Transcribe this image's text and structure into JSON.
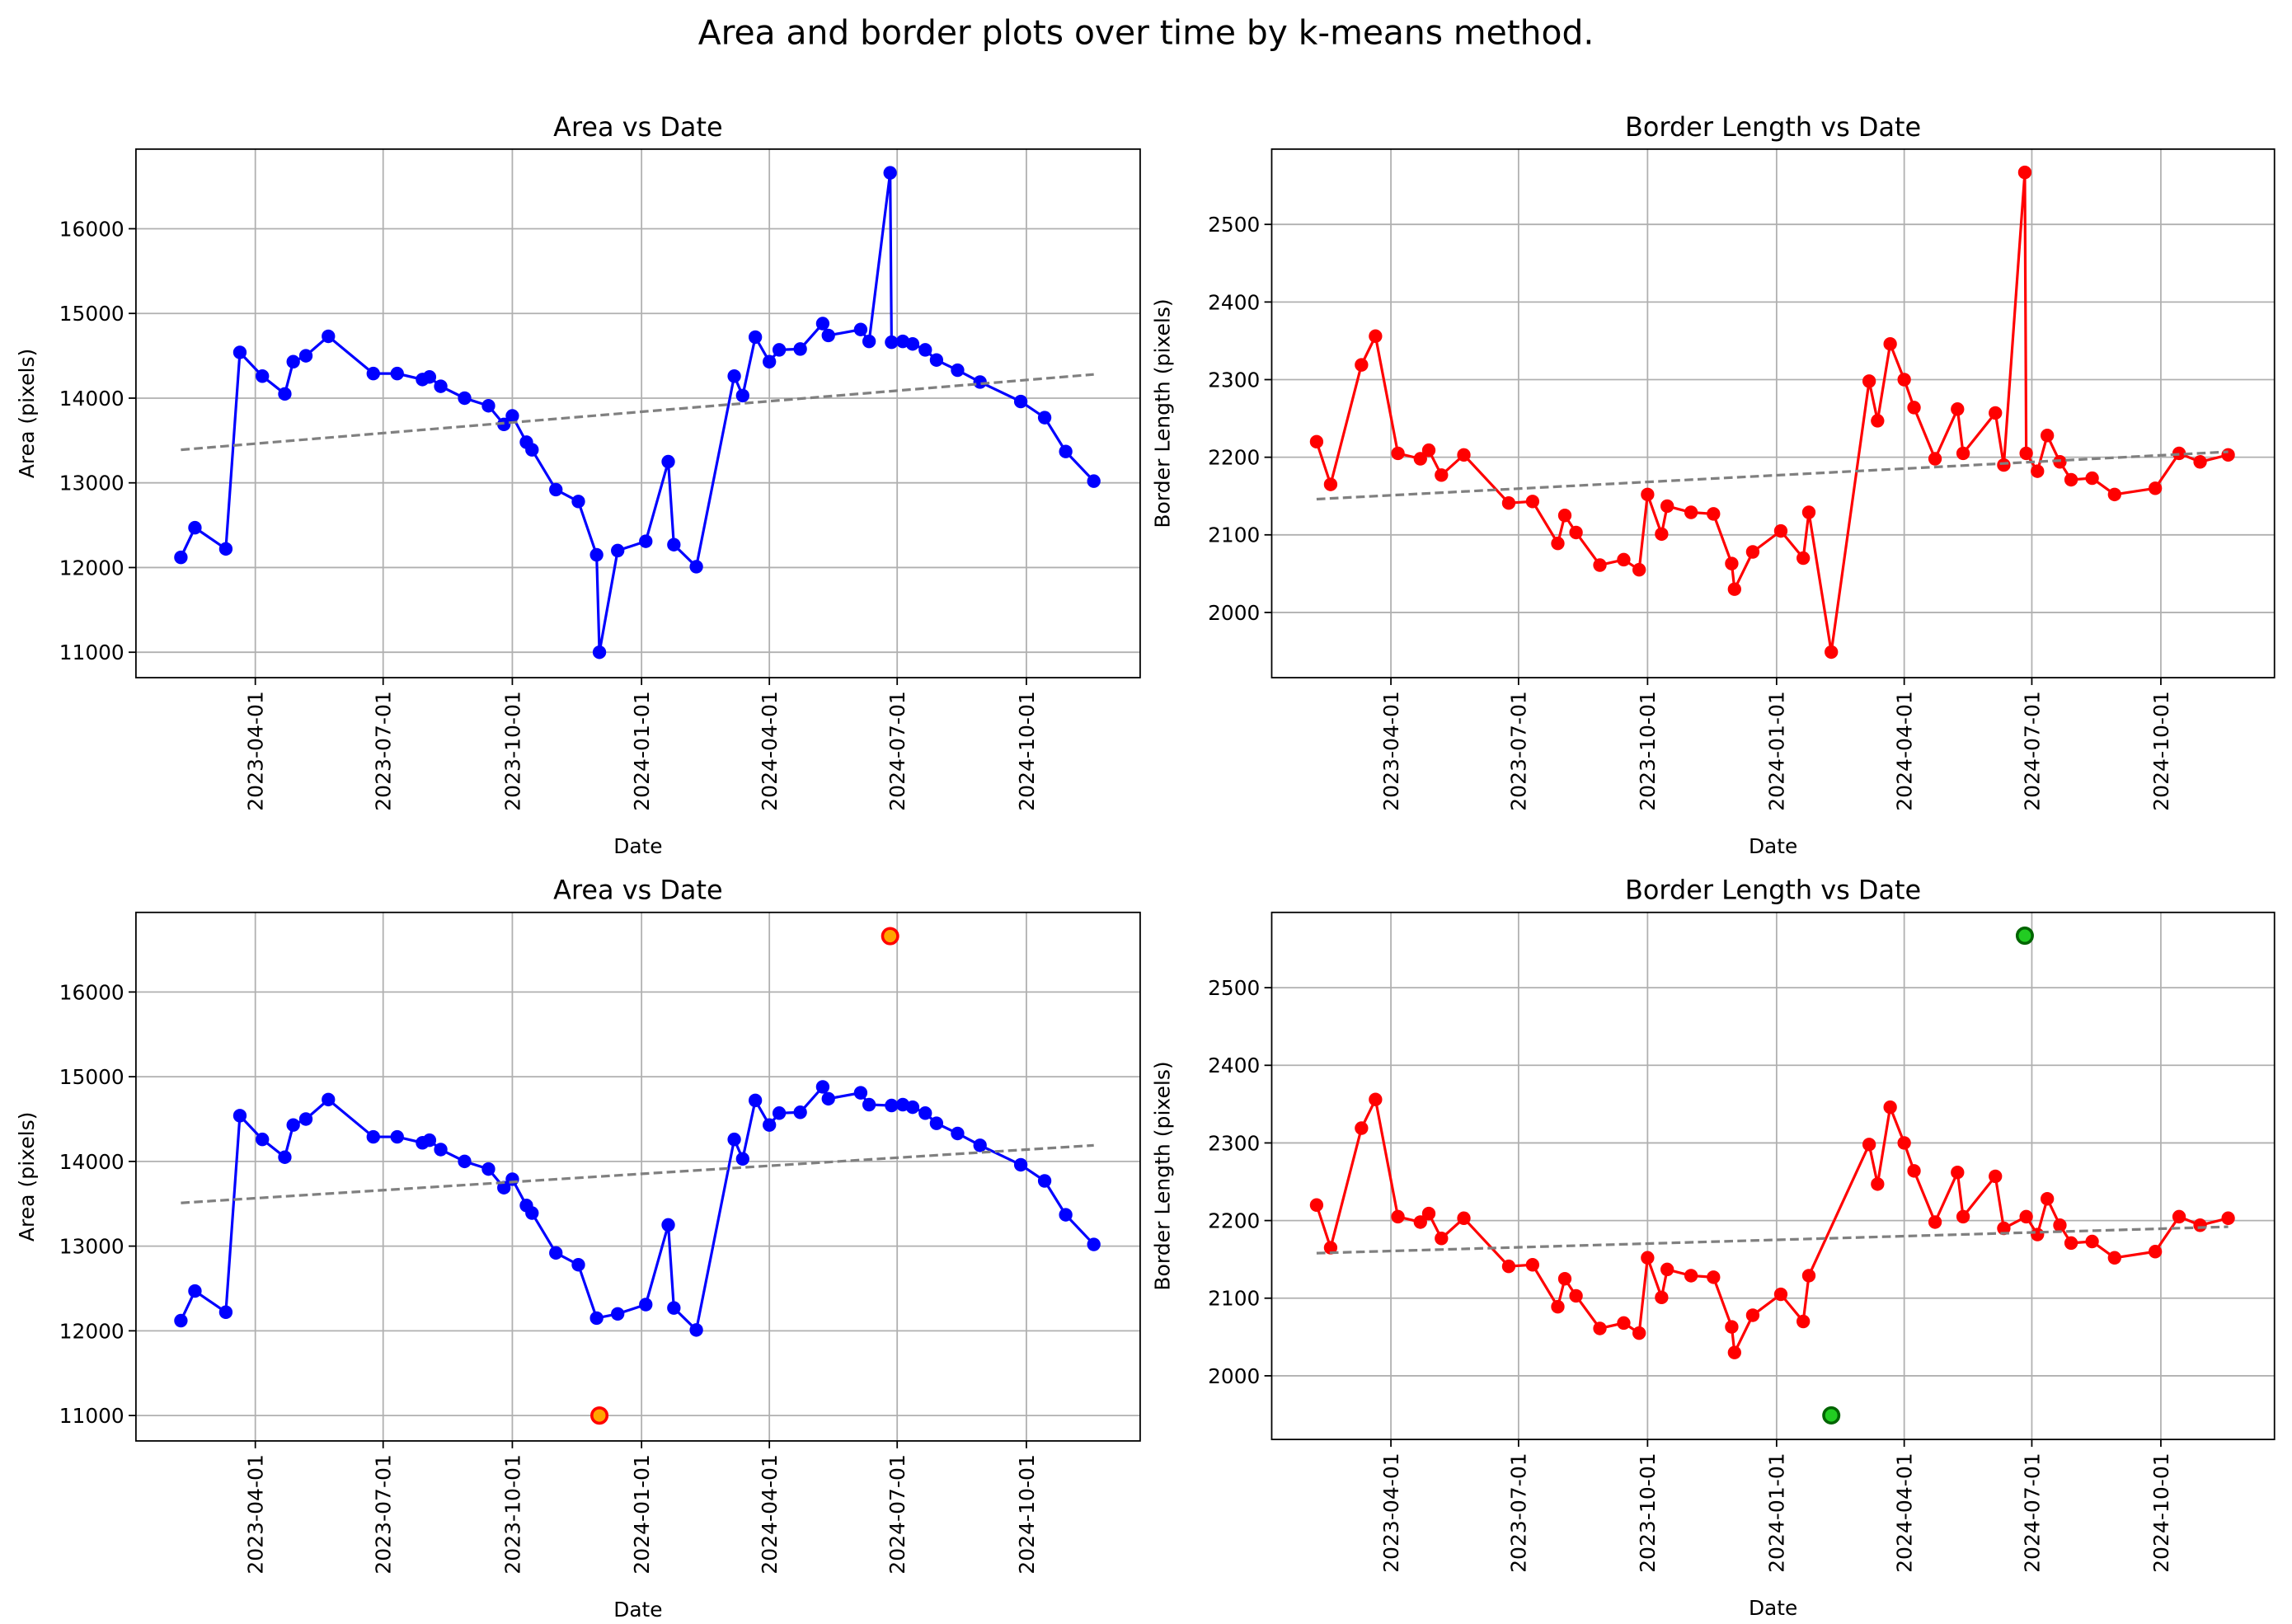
{
  "title": "Area and border plots over time by k-means method.",
  "chart_data": [
    {
      "type": "line",
      "title": "Area vs Date",
      "xlabel": "Date",
      "ylabel": "Area (pixels)",
      "grid": true,
      "xlim": [
        "2023-01-06",
        "2024-12-21"
      ],
      "xticks": [
        "2023-04-01",
        "2023-07-01",
        "2023-10-01",
        "2024-01-01",
        "2024-04-01",
        "2024-07-01",
        "2024-10-01"
      ],
      "ylim": [
        10700,
        16940
      ],
      "yticks": [
        11000,
        12000,
        13000,
        14000,
        15000,
        16000
      ],
      "x": [
        "2023-02-07",
        "2023-02-17",
        "2023-03-11",
        "2023-03-21",
        "2023-04-06",
        "2023-04-22",
        "2023-04-28",
        "2023-05-07",
        "2023-05-23",
        "2023-06-24",
        "2023-07-11",
        "2023-07-29",
        "2023-08-03",
        "2023-08-11",
        "2023-08-28",
        "2023-09-14",
        "2023-09-25",
        "2023-10-01",
        "2023-10-11",
        "2023-10-15",
        "2023-11-01",
        "2023-11-17",
        "2023-11-30",
        "2023-12-02",
        "2023-12-15",
        "2024-01-04",
        "2024-01-20",
        "2024-01-24",
        "2024-02-09",
        "2024-03-07",
        "2024-03-13",
        "2024-03-22",
        "2024-04-01",
        "2024-04-08",
        "2024-04-23",
        "2024-05-09",
        "2024-05-13",
        "2024-06-05",
        "2024-06-11",
        "2024-06-26",
        "2024-06-27",
        "2024-07-05",
        "2024-07-12",
        "2024-07-21",
        "2024-07-29",
        "2024-08-13",
        "2024-08-29",
        "2024-09-27",
        "2024-10-14",
        "2024-10-29",
        "2024-11-18"
      ],
      "series": [
        {
          "color": "#0000ff",
          "marker": "o",
          "linestyle": "solid",
          "values": [
            12120,
            12470,
            12220,
            14540,
            14260,
            14050,
            14430,
            14500,
            14730,
            14290,
            14290,
            14220,
            14250,
            14140,
            14000,
            13910,
            13690,
            13790,
            13480,
            13390,
            12920,
            12780,
            12150,
            11000,
            12200,
            12310,
            13250,
            12270,
            12010,
            14260,
            14030,
            14720,
            14430,
            14570,
            14580,
            14880,
            14740,
            14810,
            14670,
            16660,
            14660,
            14670,
            14640,
            14570,
            14450,
            14330,
            14190,
            13960,
            13770,
            13370,
            13020
          ]
        },
        {
          "color": "#808080",
          "linestyle": "dashed",
          "x": [
            "2023-02-07",
            "2024-11-18"
          ],
          "values": [
            13390,
            14280
          ]
        }
      ]
    },
    {
      "type": "line",
      "title": "Border Length vs Date",
      "xlabel": "Date",
      "ylabel": "Border Length (pixels)",
      "grid": true,
      "xlim": [
        "2023-01-06",
        "2024-12-21"
      ],
      "xticks": [
        "2023-04-01",
        "2023-07-01",
        "2023-10-01",
        "2024-01-01",
        "2024-04-01",
        "2024-07-01",
        "2024-10-01"
      ],
      "ylim": [
        1916,
        2597
      ],
      "yticks": [
        2000,
        2100,
        2200,
        2300,
        2400,
        2500
      ],
      "x": [
        "2023-02-07",
        "2023-02-17",
        "2023-03-11",
        "2023-03-21",
        "2023-04-06",
        "2023-04-22",
        "2023-04-28",
        "2023-05-07",
        "2023-05-23",
        "2023-06-24",
        "2023-07-11",
        "2023-07-29",
        "2023-08-03",
        "2023-08-11",
        "2023-08-28",
        "2023-09-14",
        "2023-09-25",
        "2023-10-01",
        "2023-10-11",
        "2023-10-15",
        "2023-11-01",
        "2023-11-17",
        "2023-11-30",
        "2023-12-02",
        "2023-12-15",
        "2024-01-04",
        "2024-01-20",
        "2024-01-24",
        "2024-02-09",
        "2024-03-07",
        "2024-03-13",
        "2024-03-22",
        "2024-04-01",
        "2024-04-08",
        "2024-04-23",
        "2024-05-09",
        "2024-05-13",
        "2024-06-05",
        "2024-06-11",
        "2024-06-26",
        "2024-06-27",
        "2024-07-05",
        "2024-07-12",
        "2024-07-21",
        "2024-07-29",
        "2024-08-13",
        "2024-08-29",
        "2024-09-27",
        "2024-10-14",
        "2024-10-29",
        "2024-11-18"
      ],
      "series": [
        {
          "color": "#ff0000",
          "marker": "o",
          "linestyle": "solid",
          "values": [
            2220,
            2165,
            2319,
            2356,
            2205,
            2198,
            2209,
            2177,
            2203,
            2141,
            2143,
            2089,
            2125,
            2103,
            2061,
            2068,
            2055,
            2152,
            2101,
            2137,
            2129,
            2127,
            2063,
            2030,
            2078,
            2105,
            2070,
            2129,
            1949,
            2298,
            2247,
            2346,
            2300,
            2264,
            2198,
            2262,
            2205,
            2257,
            2190,
            2567,
            2205,
            2182,
            2228,
            2194,
            2171,
            2173,
            2152,
            2160,
            2205,
            2194,
            2203
          ]
        },
        {
          "color": "#808080",
          "linestyle": "dashed",
          "x": [
            "2023-02-07",
            "2024-11-18"
          ],
          "values": [
            2146,
            2207
          ]
        }
      ]
    },
    {
      "type": "line",
      "title": "Area vs Date",
      "xlabel": "Date",
      "ylabel": "Area (pixels)",
      "grid": true,
      "xlim": [
        "2023-01-06",
        "2024-12-21"
      ],
      "xticks": [
        "2023-04-01",
        "2023-07-01",
        "2023-10-01",
        "2024-01-01",
        "2024-04-01",
        "2024-07-01",
        "2024-10-01"
      ],
      "ylim": [
        10700,
        16940
      ],
      "yticks": [
        11000,
        12000,
        13000,
        14000,
        15000,
        16000
      ],
      "x": [
        "2023-02-07",
        "2023-02-17",
        "2023-03-11",
        "2023-03-21",
        "2023-04-06",
        "2023-04-22",
        "2023-04-28",
        "2023-05-07",
        "2023-05-23",
        "2023-06-24",
        "2023-07-11",
        "2023-07-29",
        "2023-08-03",
        "2023-08-11",
        "2023-08-28",
        "2023-09-14",
        "2023-09-25",
        "2023-10-01",
        "2023-10-11",
        "2023-10-15",
        "2023-11-01",
        "2023-11-17",
        "2023-11-30",
        "2023-12-15",
        "2024-01-04",
        "2024-01-20",
        "2024-01-24",
        "2024-02-09",
        "2024-03-07",
        "2024-03-13",
        "2024-03-22",
        "2024-04-01",
        "2024-04-08",
        "2024-04-23",
        "2024-05-09",
        "2024-05-13",
        "2024-06-05",
        "2024-06-11",
        "2024-06-27",
        "2024-07-05",
        "2024-07-12",
        "2024-07-21",
        "2024-07-29",
        "2024-08-13",
        "2024-08-29",
        "2024-09-27",
        "2024-10-14",
        "2024-10-29",
        "2024-11-18"
      ],
      "series": [
        {
          "color": "#0000ff",
          "marker": "o",
          "linestyle": "solid",
          "values": [
            12120,
            12470,
            12220,
            14540,
            14260,
            14050,
            14430,
            14500,
            14730,
            14290,
            14290,
            14220,
            14250,
            14140,
            14000,
            13910,
            13690,
            13790,
            13480,
            13390,
            12920,
            12780,
            12150,
            12200,
            12310,
            13250,
            12270,
            12010,
            14260,
            14030,
            14720,
            14430,
            14570,
            14580,
            14880,
            14740,
            14810,
            14670,
            14660,
            14670,
            14640,
            14570,
            14450,
            14330,
            14190,
            13960,
            13770,
            13370,
            13020
          ]
        },
        {
          "color": "#808080",
          "linestyle": "dashed",
          "x": [
            "2023-02-07",
            "2024-11-18"
          ],
          "values": [
            13510,
            14190
          ]
        },
        {
          "color": "#ffa500",
          "edgecolor": "#ff0000",
          "marker": "o",
          "linestyle": "none",
          "x": [
            "2023-12-02",
            "2024-06-26"
          ],
          "values": [
            11000,
            16660
          ]
        }
      ]
    },
    {
      "type": "line",
      "title": "Border Length vs Date",
      "xlabel": "Date",
      "ylabel": "Border Length (pixels)",
      "grid": true,
      "xlim": [
        "2023-01-06",
        "2024-12-21"
      ],
      "xticks": [
        "2023-04-01",
        "2023-07-01",
        "2023-10-01",
        "2024-01-01",
        "2024-04-01",
        "2024-07-01",
        "2024-10-01"
      ],
      "ylim": [
        1918,
        2597
      ],
      "yticks": [
        2000,
        2100,
        2200,
        2300,
        2400,
        2500
      ],
      "x": [
        "2023-02-07",
        "2023-02-17",
        "2023-03-11",
        "2023-03-21",
        "2023-04-06",
        "2023-04-22",
        "2023-04-28",
        "2023-05-07",
        "2023-05-23",
        "2023-06-24",
        "2023-07-11",
        "2023-07-29",
        "2023-08-03",
        "2023-08-11",
        "2023-08-28",
        "2023-09-14",
        "2023-09-25",
        "2023-10-01",
        "2023-10-11",
        "2023-10-15",
        "2023-11-01",
        "2023-11-17",
        "2023-11-30",
        "2023-12-02",
        "2023-12-15",
        "2024-01-04",
        "2024-01-20",
        "2024-01-24",
        "2024-03-07",
        "2024-03-13",
        "2024-03-22",
        "2024-04-01",
        "2024-04-08",
        "2024-04-23",
        "2024-05-09",
        "2024-05-13",
        "2024-06-05",
        "2024-06-11",
        "2024-06-27",
        "2024-07-05",
        "2024-07-12",
        "2024-07-21",
        "2024-07-29",
        "2024-08-13",
        "2024-08-29",
        "2024-09-27",
        "2024-10-14",
        "2024-10-29",
        "2024-11-18"
      ],
      "series": [
        {
          "color": "#ff0000",
          "marker": "o",
          "linestyle": "solid",
          "values": [
            2220,
            2165,
            2319,
            2356,
            2205,
            2198,
            2209,
            2177,
            2203,
            2141,
            2143,
            2089,
            2125,
            2103,
            2061,
            2068,
            2055,
            2152,
            2101,
            2137,
            2129,
            2127,
            2063,
            2030,
            2078,
            2105,
            2070,
            2129,
            2298,
            2247,
            2346,
            2300,
            2264,
            2198,
            2262,
            2205,
            2257,
            2190,
            2205,
            2182,
            2228,
            2194,
            2171,
            2173,
            2152,
            2160,
            2205,
            2194,
            2203
          ]
        },
        {
          "color": "#808080",
          "linestyle": "dashed",
          "x": [
            "2023-02-07",
            "2024-11-18"
          ],
          "values": [
            2158,
            2192
          ]
        },
        {
          "color": "#22cc22",
          "edgecolor": "#006400",
          "marker": "o",
          "linestyle": "none",
          "x": [
            "2024-02-09",
            "2024-06-26"
          ],
          "values": [
            1949,
            2567
          ]
        }
      ]
    }
  ]
}
